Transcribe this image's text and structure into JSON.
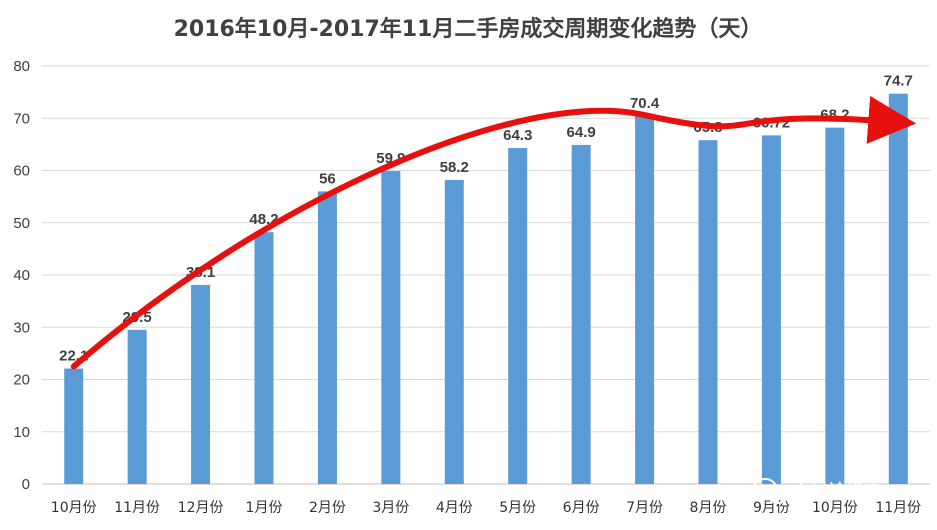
{
  "chart_data": {
    "type": "bar",
    "title": "2016年10月-2017年11月二手房成交周期变化趋势（天）",
    "categories": [
      "10月份",
      "11月份",
      "12月份",
      "1月份",
      "2月份",
      "3月份",
      "4月份",
      "5月份",
      "6月份",
      "7月份",
      "8月份",
      "9月份",
      "10月份",
      "11月份"
    ],
    "values": [
      22.1,
      29.5,
      38.1,
      48.2,
      56,
      59.9,
      58.2,
      64.3,
      64.9,
      70.4,
      65.8,
      66.72,
      68.2,
      74.7
    ],
    "data_labels": [
      "22.1",
      "29.5",
      "38.1",
      "48.2",
      "56",
      "59.9",
      "58.2",
      "64.3",
      "64.9",
      "70.4",
      "65.8",
      "66.72",
      "68.2",
      "74.7"
    ],
    "yticks": [
      "0",
      "10",
      "20",
      "30",
      "40",
      "50",
      "60",
      "70",
      "80"
    ],
    "ylim": [
      0,
      80
    ],
    "grid": true,
    "legend": "none",
    "bar_color": "#5B9BD5",
    "annotation": {
      "type": "trend-arrow",
      "color": "#E8100F"
    }
  },
  "watermark": {
    "text": "小易论楼市",
    "icon": "wechat-icon"
  }
}
